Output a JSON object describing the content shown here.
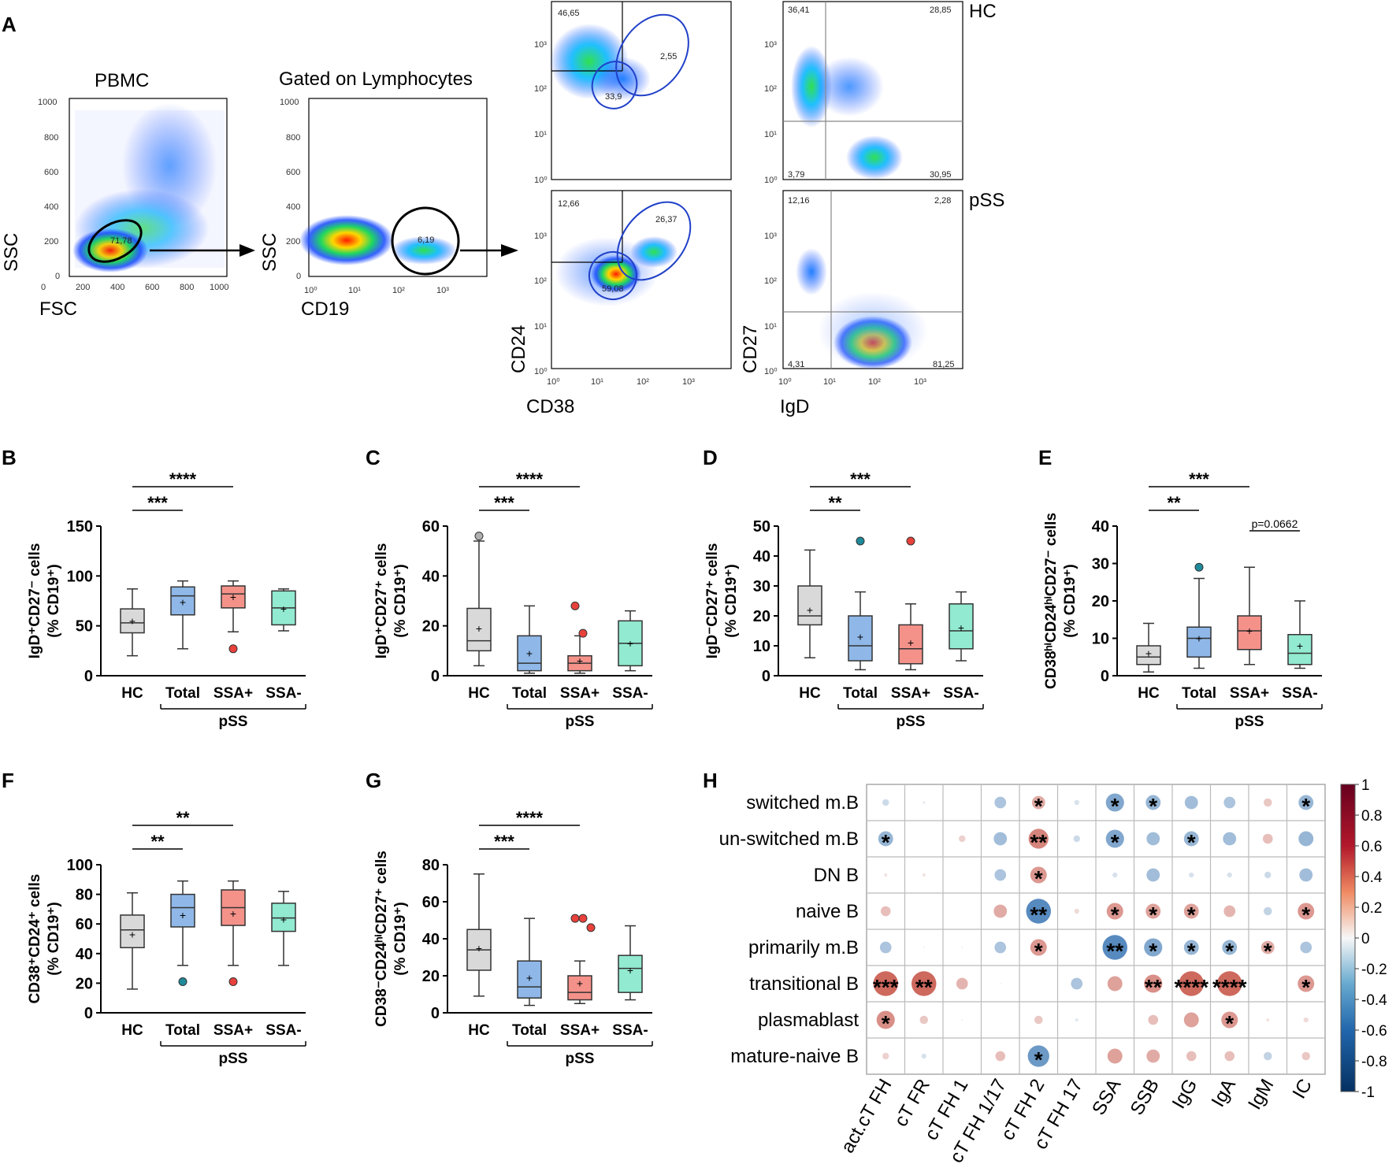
{
  "panel_labels": [
    "A",
    "B",
    "C",
    "D",
    "E",
    "F",
    "G",
    "H"
  ],
  "panel_a": {
    "plots": [
      {
        "title": "PBMC",
        "xlabel": "FSC",
        "ylabel": "SSC",
        "x_ticks": [
          "0",
          "200",
          "400",
          "600",
          "800",
          "1000"
        ],
        "y_ticks": [
          "0",
          "200",
          "400",
          "600",
          "800",
          "1000"
        ],
        "gate_value": "71,78"
      },
      {
        "title": "Gated on Lymphocytes",
        "xlabel": "CD19",
        "ylabel": "SSC",
        "x_ticks": [
          "10⁰",
          "10¹",
          "10²",
          "10³"
        ],
        "y_ticks": [
          "0",
          "200",
          "400",
          "600",
          "800",
          "1000"
        ],
        "gate_value": "6,19"
      },
      {
        "group": "HC",
        "xlabel": "",
        "ylabel": "",
        "values": [
          "46,65",
          "2,55",
          "33,9"
        ]
      },
      {
        "group": "HC",
        "xlabel": "",
        "ylabel": "",
        "values": [
          "36,41",
          "28,85",
          "3,79",
          "30,95"
        ]
      },
      {
        "group": "pSS",
        "xlabel": "CD38",
        "ylabel": "CD24",
        "values": [
          "12,66",
          "26,37",
          "59,08"
        ]
      },
      {
        "group": "pSS",
        "xlabel": "IgD",
        "ylabel": "CD27",
        "values": [
          "12,16",
          "2,28",
          "4,31",
          "81,25"
        ]
      }
    ],
    "log_ticks": [
      "10⁰",
      "10¹",
      "10²",
      "10³"
    ],
    "group_labels": [
      "HC",
      "pSS"
    ]
  },
  "chart_data": [
    {
      "type": "box",
      "panel": "B",
      "ylabel_main": "IgD⁺CD27⁻ cells",
      "ylabel_sub": "(% CD19⁺)",
      "categories": [
        "HC",
        "Total",
        "SSA+",
        "SSA-"
      ],
      "group_label": "pSS",
      "ylim": [
        0,
        150
      ],
      "yticks": [
        "0",
        "50",
        "100",
        "150"
      ],
      "ytick_values": [
        0,
        50,
        100,
        150
      ],
      "boxes": [
        {
          "min": 20,
          "q1": 43,
          "median": 53,
          "q3": 67,
          "max": 87,
          "mean": 55,
          "outliers": []
        },
        {
          "min": 27,
          "q1": 61,
          "median": 80,
          "q3": 89,
          "max": 95,
          "mean": 74,
          "outliers": []
        },
        {
          "min": 44,
          "q1": 68,
          "median": 82,
          "q3": 90,
          "max": 95,
          "mean": 79,
          "outliers": [
            27
          ]
        },
        {
          "min": 45,
          "q1": 51,
          "median": 68,
          "q3": 85,
          "max": 87,
          "mean": 67,
          "outliers": []
        }
      ],
      "significance": [
        {
          "from": 0,
          "to": 1,
          "label": "***"
        },
        {
          "from": 0,
          "to": 2,
          "label": "****"
        }
      ]
    },
    {
      "type": "box",
      "panel": "C",
      "ylabel_main": "IgD⁺CD27⁺ cells",
      "ylabel_sub": "(% CD19⁺)",
      "categories": [
        "HC",
        "Total",
        "SSA+",
        "SSA-"
      ],
      "group_label": "pSS",
      "ylim": [
        0,
        60
      ],
      "yticks": [
        "0",
        "20",
        "40",
        "60"
      ],
      "ytick_values": [
        0,
        20,
        40,
        60
      ],
      "boxes": [
        {
          "min": 4,
          "q1": 10,
          "median": 14,
          "q3": 27,
          "max": 54,
          "mean": 19,
          "outliers": [
            56
          ]
        },
        {
          "min": 1,
          "q1": 2,
          "median": 5,
          "q3": 16,
          "max": 28,
          "mean": 9,
          "outliers": []
        },
        {
          "min": 1,
          "q1": 2,
          "median": 5,
          "q3": 8,
          "max": 16,
          "mean": 6,
          "outliers": [
            28,
            17
          ]
        },
        {
          "min": 2,
          "q1": 4,
          "median": 13,
          "q3": 22,
          "max": 26,
          "mean": 13,
          "outliers": []
        }
      ],
      "significance": [
        {
          "from": 0,
          "to": 1,
          "label": "***"
        },
        {
          "from": 0,
          "to": 2,
          "label": "****"
        }
      ]
    },
    {
      "type": "box",
      "panel": "D",
      "ylabel_main": "IgD⁻CD27⁺ cells",
      "ylabel_sub": "(% CD19⁺)",
      "categories": [
        "HC",
        "Total",
        "SSA+",
        "SSA-"
      ],
      "group_label": "pSS",
      "ylim": [
        0,
        50
      ],
      "yticks": [
        "0",
        "10",
        "20",
        "30",
        "40",
        "50"
      ],
      "ytick_values": [
        0,
        10,
        20,
        30,
        40,
        50
      ],
      "boxes": [
        {
          "min": 6,
          "q1": 17,
          "median": 20,
          "q3": 30,
          "max": 42,
          "mean": 22,
          "outliers": []
        },
        {
          "min": 2,
          "q1": 5,
          "median": 10,
          "q3": 20,
          "max": 28,
          "mean": 13,
          "outliers": [
            45
          ]
        },
        {
          "min": 2,
          "q1": 4,
          "median": 9,
          "q3": 17,
          "max": 24,
          "mean": 11,
          "outliers": [
            45
          ]
        },
        {
          "min": 5,
          "q1": 9,
          "median": 15,
          "q3": 24,
          "max": 28,
          "mean": 16,
          "outliers": []
        }
      ],
      "significance": [
        {
          "from": 0,
          "to": 1,
          "label": "**"
        },
        {
          "from": 0,
          "to": 2,
          "label": "***"
        }
      ]
    },
    {
      "type": "box",
      "panel": "E",
      "ylabel_main": "CD38ʰⁱCD24ʰⁱCD27⁻ cells",
      "ylabel_sub": "(% CD19⁺)",
      "categories": [
        "HC",
        "Total",
        "SSA+",
        "SSA-"
      ],
      "group_label": "pSS",
      "ylim": [
        0,
        40
      ],
      "yticks": [
        "0",
        "10",
        "20",
        "30",
        "40"
      ],
      "ytick_values": [
        0,
        10,
        20,
        30,
        40
      ],
      "boxes": [
        {
          "min": 1,
          "q1": 3,
          "median": 5,
          "q3": 8,
          "max": 14,
          "mean": 6,
          "outliers": []
        },
        {
          "min": 2,
          "q1": 5,
          "median": 10,
          "q3": 13,
          "max": 26,
          "mean": 10,
          "outliers": [
            29
          ]
        },
        {
          "min": 3,
          "q1": 7,
          "median": 12,
          "q3": 16,
          "max": 29,
          "mean": 12,
          "outliers": []
        },
        {
          "min": 2,
          "q1": 3,
          "median": 6,
          "q3": 11,
          "max": 20,
          "mean": 8,
          "outliers": []
        }
      ],
      "significance": [
        {
          "from": 0,
          "to": 1,
          "label": "**"
        },
        {
          "from": 0,
          "to": 2,
          "label": "***"
        },
        {
          "from": 2,
          "to": 3,
          "label": "p=0.0662"
        }
      ]
    },
    {
      "type": "box",
      "panel": "F",
      "ylabel_main": "CD38⁺CD24⁺ cells",
      "ylabel_sub": "(% CD19⁺)",
      "categories": [
        "HC",
        "Total",
        "SSA+",
        "SSA-"
      ],
      "group_label": "pSS",
      "ylim": [
        0,
        100
      ],
      "yticks": [
        "0",
        "20",
        "40",
        "60",
        "80",
        "100"
      ],
      "ytick_values": [
        0,
        20,
        40,
        60,
        80,
        100
      ],
      "boxes": [
        {
          "min": 16,
          "q1": 44,
          "median": 56,
          "q3": 66,
          "max": 81,
          "mean": 53,
          "outliers": []
        },
        {
          "min": 32,
          "q1": 58,
          "median": 71,
          "q3": 80,
          "max": 89,
          "mean": 66,
          "outliers": [
            21
          ]
        },
        {
          "min": 32,
          "q1": 59,
          "median": 71,
          "q3": 83,
          "max": 89,
          "mean": 67,
          "outliers": [
            21
          ]
        },
        {
          "min": 32,
          "q1": 55,
          "median": 64,
          "q3": 74,
          "max": 82,
          "mean": 63,
          "outliers": []
        }
      ],
      "significance": [
        {
          "from": 0,
          "to": 1,
          "label": "**"
        },
        {
          "from": 0,
          "to": 2,
          "label": "**"
        }
      ]
    },
    {
      "type": "box",
      "panel": "G",
      "ylabel_main": "CD38⁻CD24ʰⁱCD27⁺ cells",
      "ylabel_sub": "(% CD19⁺)",
      "categories": [
        "HC",
        "Total",
        "SSA+",
        "SSA-"
      ],
      "group_label": "pSS",
      "ylim": [
        0,
        80
      ],
      "yticks": [
        "0",
        "20",
        "40",
        "60",
        "80"
      ],
      "ytick_values": [
        0,
        20,
        40,
        60,
        80
      ],
      "boxes": [
        {
          "min": 9,
          "q1": 23,
          "median": 34,
          "q3": 45,
          "max": 75,
          "mean": 35,
          "outliers": []
        },
        {
          "min": 4,
          "q1": 8,
          "median": 14,
          "q3": 28,
          "max": 51,
          "mean": 19,
          "outliers": []
        },
        {
          "min": 5,
          "q1": 7,
          "median": 11,
          "q3": 20,
          "max": 28,
          "mean": 16,
          "outliers": [
            51,
            51,
            46
          ]
        },
        {
          "min": 7,
          "q1": 11,
          "median": 24,
          "q3": 31,
          "max": 47,
          "mean": 23,
          "outliers": []
        }
      ],
      "significance": [
        {
          "from": 0,
          "to": 1,
          "label": "***"
        },
        {
          "from": 0,
          "to": 2,
          "label": "****"
        }
      ]
    },
    {
      "type": "heatmap",
      "panel": "H",
      "rows": [
        "switched m.B",
        "un-switched m.B",
        "DN B",
        "naive B",
        "primarily m.B",
        "transitional B",
        "plasmablast",
        "mature-naive B"
      ],
      "columns": [
        "act.cT FH",
        "cT FR",
        "cT FH 1",
        "cT FH 1/17",
        "cT FH 2",
        "cT FH 17",
        "SSA",
        "SSB",
        "IgG",
        "IgA",
        "IgM",
        "IC"
      ],
      "values": [
        [
          -0.2,
          -0.08,
          0.0,
          -0.35,
          0.4,
          -0.15,
          -0.55,
          -0.45,
          -0.4,
          -0.35,
          0.25,
          -0.45
        ],
        [
          -0.45,
          0.0,
          0.2,
          -0.4,
          0.6,
          -0.2,
          -0.55,
          -0.4,
          -0.45,
          -0.4,
          0.3,
          -0.45
        ],
        [
          0.1,
          0.1,
          0.0,
          -0.35,
          0.5,
          0.0,
          -0.15,
          -0.4,
          -0.15,
          -0.15,
          -0.2,
          -0.4
        ],
        [
          0.3,
          0.0,
          0.0,
          0.4,
          -0.75,
          0.15,
          0.5,
          0.45,
          0.45,
          0.35,
          -0.25,
          0.5
        ],
        [
          -0.35,
          0.05,
          0.05,
          -0.35,
          0.5,
          0.0,
          -0.75,
          -0.55,
          -0.45,
          -0.45,
          0.4,
          -0.35
        ],
        [
          0.75,
          0.75,
          0.35,
          0.05,
          0.0,
          -0.35,
          0.45,
          0.55,
          0.75,
          0.75,
          0.0,
          0.5
        ],
        [
          0.55,
          0.25,
          -0.05,
          0.0,
          0.25,
          -0.1,
          0.0,
          0.3,
          0.45,
          0.5,
          0.1,
          0.15
        ],
        [
          0.2,
          -0.15,
          0.0,
          0.3,
          -0.65,
          0.0,
          0.45,
          0.4,
          0.3,
          0.3,
          -0.25,
          0.25
        ]
      ],
      "stars": [
        [
          "",
          "",
          "",
          "",
          "*",
          "",
          "*",
          "*",
          "",
          "",
          "",
          "*"
        ],
        [
          "*",
          "",
          "",
          "",
          "**",
          "",
          "*",
          "",
          "*",
          "",
          "",
          ""
        ],
        [
          "",
          "",
          "",
          "",
          "*",
          "",
          "",
          "",
          "",
          "",
          "",
          ""
        ],
        [
          "",
          "",
          "",
          "",
          "**",
          "",
          "*",
          "*",
          "*",
          "",
          "",
          "*"
        ],
        [
          "",
          "",
          "",
          "",
          "*",
          "",
          "**",
          "*",
          "*",
          "*",
          "*",
          ""
        ],
        [
          "***",
          "**",
          "",
          "",
          "",
          "",
          "",
          "**",
          "****",
          "****",
          "",
          "*"
        ],
        [
          "*",
          "",
          "",
          "",
          "",
          "",
          "",
          "",
          "",
          "*",
          "",
          ""
        ],
        [
          "",
          "",
          "",
          "",
          "*",
          "",
          "",
          "",
          "",
          "",
          "",
          ""
        ]
      ],
      "colorbar_ticks": [
        "1",
        "0.8",
        "0.6",
        "0.4",
        "0.2",
        "0",
        "-0.2",
        "-0.4",
        "-0.6",
        "-0.8",
        "-1"
      ],
      "colorbar_values": [
        1,
        0.8,
        0.6,
        0.4,
        0.2,
        0,
        -0.2,
        -0.4,
        -0.6,
        -0.8,
        -1
      ],
      "colors": {
        "negative_end": "#1f4e8c",
        "neutral": "#f7f7f7",
        "positive_end": "#8b0a1a"
      }
    }
  ],
  "colors": {
    "HC": "#d9d9d9",
    "Total": "#8fb8e8",
    "SSA+": "#f4928a",
    "SSA-": "#92ead0",
    "outlier_HC": "#b0b0b0",
    "outlier_Total": "#1f8a9a",
    "outlier_SSA+": "#e8413c",
    "gate_blue": "#2040c8"
  }
}
